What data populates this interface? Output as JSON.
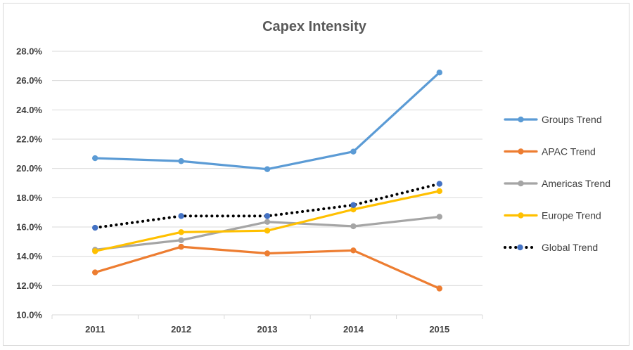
{
  "chart_data": {
    "type": "line",
    "title": "Capex Intensity",
    "xlabel": "",
    "ylabel": "",
    "categories": [
      "2011",
      "2012",
      "2013",
      "2014",
      "2015"
    ],
    "ylim": [
      0.1,
      0.28
    ],
    "yticks": [
      0.1,
      0.12,
      0.14,
      0.16,
      0.18,
      0.2,
      0.22,
      0.24,
      0.26,
      0.28
    ],
    "ytick_labels": [
      "10.0%",
      "12.0%",
      "14.0%",
      "16.0%",
      "18.0%",
      "20.0%",
      "22.0%",
      "24.0%",
      "26.0%",
      "28.0%"
    ],
    "grid": true,
    "legend_position": "right",
    "series": [
      {
        "name": "Groups Trend",
        "color": "#5B9BD5",
        "style": "solid",
        "marker_color": "#5B9BD5",
        "values": [
          0.207,
          0.205,
          0.1995,
          0.2115,
          0.2655
        ]
      },
      {
        "name": "APAC Trend",
        "color": "#ED7D31",
        "style": "solid",
        "marker_color": "#ED7D31",
        "values": [
          0.129,
          0.1465,
          0.142,
          0.144,
          0.118
        ]
      },
      {
        "name": "Americas Trend",
        "color": "#A5A5A5",
        "style": "solid",
        "marker_color": "#A5A5A5",
        "values": [
          0.1445,
          0.151,
          0.1635,
          0.1605,
          0.167
        ]
      },
      {
        "name": "Europe Trend",
        "color": "#FFC000",
        "style": "solid",
        "marker_color": "#FFC000",
        "values": [
          0.1435,
          0.1565,
          0.1575,
          0.172,
          0.1845
        ]
      },
      {
        "name": "Global Trend",
        "color": "#000000",
        "style": "dotted",
        "marker_color": "#4472C4",
        "values": [
          0.1595,
          0.1675,
          0.1675,
          0.175,
          0.1895
        ]
      }
    ]
  }
}
